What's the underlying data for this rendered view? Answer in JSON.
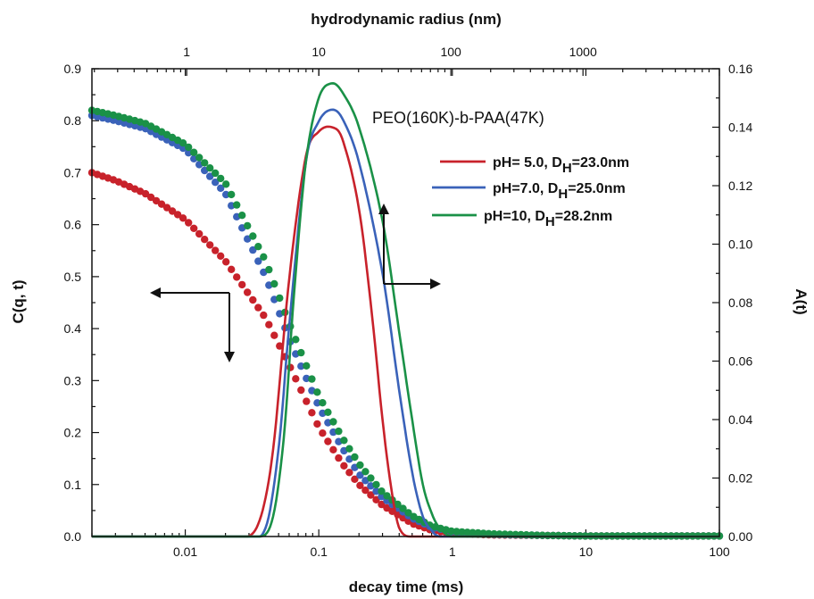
{
  "chart_data": {
    "type": "scatter",
    "title": "",
    "top_axis": {
      "label": "hydrodynamic radius (nm)",
      "ticks": [
        "1",
        "10",
        "100",
        "1000"
      ],
      "tick_values": [
        1,
        10,
        100,
        1000
      ],
      "scale": "log"
    },
    "x_axis": {
      "label": "decay time (ms)",
      "ticks": [
        "0.01",
        "0.1",
        "1",
        "10",
        "100"
      ],
      "tick_values": [
        0.01,
        0.1,
        1,
        10,
        100
      ],
      "scale": "log",
      "xlim": [
        0.002,
        100
      ]
    },
    "left_axis": {
      "label": "C(q, t)",
      "ticks": [
        "0.0",
        "0.1",
        "0.2",
        "0.3",
        "0.4",
        "0.5",
        "0.6",
        "0.7",
        "0.8",
        "0.9"
      ],
      "ylim": [
        0,
        0.9
      ]
    },
    "right_axis": {
      "label": "A(t)",
      "ticks": [
        "0.00",
        "0.02",
        "0.04",
        "0.06",
        "0.08",
        "0.10",
        "0.12",
        "0.14",
        "0.16"
      ],
      "ylim": [
        0,
        0.16
      ]
    },
    "annotation": "PEO(160K)-b-PAA(47K)",
    "legend": {
      "position": "upper-right",
      "entries": [
        {
          "prefix": "pH= 5.0, D",
          "sub": "H",
          "suffix": "=23.0nm",
          "color": "#c8222b"
        },
        {
          "prefix": "pH=7.0, D",
          "sub": "H",
          "suffix": "=25.0nm",
          "color": "#3a62b9"
        },
        {
          "prefix": "pH=10, D",
          "sub": "H",
          "suffix": "=28.2nm",
          "color": "#1a9147"
        }
      ]
    },
    "correlation_series": [
      {
        "name": "pH= 5.0",
        "color": "#c8222b",
        "x": [
          0.002,
          0.003,
          0.005,
          0.01,
          0.02,
          0.04,
          0.06,
          0.1,
          0.15,
          0.2,
          0.3,
          0.5,
          0.7,
          1,
          2,
          5,
          10,
          30,
          100
        ],
        "y": [
          0.7,
          0.685,
          0.66,
          0.61,
          0.53,
          0.42,
          0.33,
          0.21,
          0.14,
          0.1,
          0.06,
          0.025,
          0.012,
          0.006,
          0.003,
          0.002,
          0.001,
          0.001,
          0.001
        ]
      },
      {
        "name": "pH=7.0",
        "color": "#3a62b9",
        "x": [
          0.002,
          0.003,
          0.005,
          0.01,
          0.02,
          0.04,
          0.06,
          0.1,
          0.15,
          0.2,
          0.3,
          0.5,
          0.7,
          1,
          2,
          5,
          10,
          30,
          100
        ],
        "y": [
          0.81,
          0.8,
          0.785,
          0.745,
          0.66,
          0.5,
          0.38,
          0.25,
          0.17,
          0.12,
          0.075,
          0.035,
          0.018,
          0.009,
          0.004,
          0.002,
          0.001,
          0.001,
          0.001
        ]
      },
      {
        "name": "pH=10",
        "color": "#1a9147",
        "x": [
          0.002,
          0.003,
          0.005,
          0.01,
          0.02,
          0.04,
          0.06,
          0.1,
          0.15,
          0.2,
          0.3,
          0.5,
          0.7,
          1,
          2,
          5,
          10,
          30,
          100
        ],
        "y": [
          0.82,
          0.81,
          0.795,
          0.755,
          0.68,
          0.53,
          0.41,
          0.27,
          0.19,
          0.14,
          0.085,
          0.04,
          0.02,
          0.01,
          0.005,
          0.002,
          0.001,
          0.001,
          0.001
        ]
      }
    ],
    "distribution_series": [
      {
        "name": "pH= 5.0",
        "color": "#c8222b",
        "x": [
          0.002,
          0.025,
          0.035,
          0.045,
          0.06,
          0.08,
          0.1,
          0.125,
          0.15,
          0.2,
          0.25,
          0.3,
          0.35,
          0.4,
          0.5,
          100
        ],
        "y": [
          0.0,
          0.0,
          0.004,
          0.028,
          0.088,
          0.13,
          0.1385,
          0.14,
          0.136,
          0.112,
          0.076,
          0.04,
          0.016,
          0.003,
          0.0,
          0.0
        ]
      },
      {
        "name": "pH=7.0",
        "color": "#3a62b9",
        "x": [
          0.002,
          0.028,
          0.04,
          0.05,
          0.06,
          0.08,
          0.1,
          0.125,
          0.15,
          0.2,
          0.3,
          0.4,
          0.5,
          0.6,
          0.7,
          0.8,
          100
        ],
        "y": [
          0.0,
          0.0,
          0.003,
          0.03,
          0.072,
          0.128,
          0.142,
          0.146,
          0.143,
          0.128,
          0.09,
          0.05,
          0.022,
          0.007,
          0.002,
          0.0,
          0.0
        ]
      },
      {
        "name": "pH=10",
        "color": "#1a9147",
        "x": [
          0.002,
          0.035,
          0.045,
          0.055,
          0.065,
          0.08,
          0.1,
          0.125,
          0.15,
          0.2,
          0.3,
          0.4,
          0.5,
          0.6,
          0.7,
          0.8,
          1.0,
          100
        ],
        "y": [
          0.0,
          0.0,
          0.006,
          0.035,
          0.082,
          0.128,
          0.15,
          0.155,
          0.152,
          0.14,
          0.108,
          0.07,
          0.04,
          0.018,
          0.008,
          0.003,
          0.0,
          0.0
        ]
      }
    ]
  }
}
